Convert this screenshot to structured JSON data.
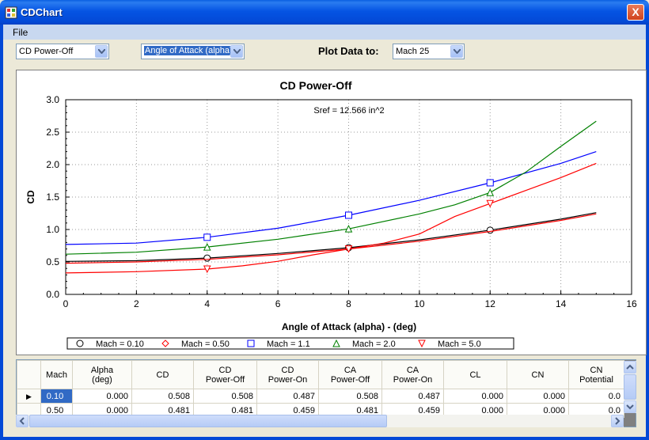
{
  "window": {
    "title": "CDChart",
    "close_label": "X"
  },
  "menu": {
    "file": "File"
  },
  "toolbar": {
    "coef_select": "CD Power-Off",
    "xaxis_select": "Angle of Attack (alpha)",
    "plot_label": "Plot Data to:",
    "mach_select": "Mach 25"
  },
  "chart_data": {
    "type": "line",
    "title": "CD Power-Off",
    "annotation": "Sref = 12.566 in^2",
    "xlabel": "Angle of Attack (alpha) - (deg)",
    "ylabel": "CD",
    "xlim": [
      0,
      16
    ],
    "ylim": [
      0,
      3
    ],
    "xticks": [
      "0",
      "2",
      "4",
      "6",
      "8",
      "10",
      "12",
      "14",
      "16"
    ],
    "yticks": [
      "0.0",
      "0.5",
      "1.0",
      "1.5",
      "2.0",
      "2.5",
      "3.0"
    ],
    "grid": true,
    "legend_position": "bottom",
    "series": [
      {
        "name": "Mach = 0.10",
        "color": "#000000",
        "marker": "circle",
        "x": [
          0,
          2,
          4,
          6,
          8,
          10,
          12,
          14,
          15
        ],
        "y": [
          0.508,
          0.52,
          0.56,
          0.63,
          0.72,
          0.84,
          0.99,
          1.16,
          1.26
        ],
        "marker_x": [
          4,
          8,
          12
        ]
      },
      {
        "name": "Mach = 0.50",
        "color": "#ff0000",
        "marker": "diamond",
        "x": [
          0,
          2,
          4,
          6,
          8,
          10,
          12,
          14,
          15
        ],
        "y": [
          0.481,
          0.5,
          0.54,
          0.61,
          0.7,
          0.82,
          0.97,
          1.14,
          1.24
        ],
        "marker_x": []
      },
      {
        "name": "Mach = 1.1",
        "color": "#0000ff",
        "marker": "square",
        "x": [
          0,
          2,
          4,
          6,
          8,
          10,
          12,
          14,
          15
        ],
        "y": [
          0.77,
          0.79,
          0.88,
          1.02,
          1.22,
          1.45,
          1.72,
          2.02,
          2.2
        ],
        "marker_x": [
          4,
          8,
          12
        ]
      },
      {
        "name": "Mach = 2.0",
        "color": "#008000",
        "marker": "triangle",
        "x": [
          0,
          2,
          4,
          6,
          8,
          10,
          11,
          12,
          13,
          14,
          15
        ],
        "y": [
          0.62,
          0.65,
          0.73,
          0.85,
          1.01,
          1.24,
          1.38,
          1.57,
          1.88,
          2.28,
          2.67
        ],
        "marker_x": [
          4,
          8,
          12
        ]
      },
      {
        "name": "Mach = 5.0",
        "color": "#ff0000",
        "marker": "triangle-down",
        "x": [
          0,
          2,
          4,
          5,
          6,
          7,
          8,
          9,
          10,
          11,
          12,
          13,
          14,
          15
        ],
        "y": [
          0.33,
          0.35,
          0.39,
          0.44,
          0.51,
          0.61,
          0.7,
          0.79,
          0.93,
          1.2,
          1.4,
          1.6,
          1.8,
          2.02
        ],
        "marker_x": [
          4,
          8,
          12
        ]
      }
    ]
  },
  "table": {
    "columns": [
      "Mach",
      "Alpha\n(deg)",
      "CD",
      "CD\nPower-Off",
      "CD\nPower-On",
      "CA\nPower-Off",
      "CA\nPower-On",
      "CL",
      "CN",
      "CN\nPotential"
    ],
    "rows": [
      [
        "0.10",
        "0.000",
        "0.508",
        "0.508",
        "0.487",
        "0.508",
        "0.487",
        "0.000",
        "0.000",
        "0.0"
      ],
      [
        "0.50",
        "0.000",
        "0.481",
        "0.481",
        "0.459",
        "0.481",
        "0.459",
        "0.000",
        "0.000",
        "0.0"
      ]
    ],
    "row_pointer": "▶"
  }
}
